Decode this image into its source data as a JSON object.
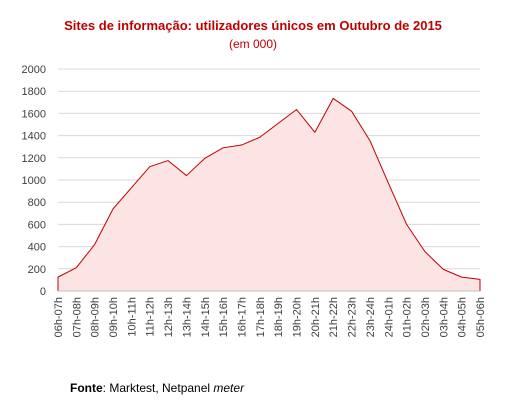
{
  "chart_data": {
    "type": "area",
    "title": "Sites de informação: utilizadores únicos em Outubro de 2015",
    "subtitle": "(em 000)",
    "xlabel": "",
    "ylabel": "",
    "ylim": [
      0,
      2000
    ],
    "yticks": [
      0,
      200,
      400,
      600,
      800,
      1000,
      1200,
      1400,
      1600,
      1800,
      2000
    ],
    "grid": true,
    "legend": "none",
    "categories": [
      "06h-07h",
      "07h-08h",
      "08h-09h",
      "09h-10h",
      "10h-11h",
      "11h-12h",
      "12h-13h",
      "13h-14h",
      "14h-15h",
      "15h-16h",
      "16h-17h",
      "17h-18h",
      "18h-19h",
      "19h-20h",
      "20h-21h",
      "21h-22h",
      "22h-23h",
      "23h-24h",
      "24h-01h",
      "01h-02h",
      "02h-03h",
      "03h-04h",
      "04h-05h",
      "05h-06h"
    ],
    "values": [
      125,
      210,
      420,
      740,
      930,
      1120,
      1175,
      1040,
      1195,
      1290,
      1315,
      1385,
      1510,
      1635,
      1430,
      1735,
      1620,
      1355,
      975,
      600,
      355,
      195,
      125,
      105
    ],
    "colors": {
      "line": "#c00000",
      "fill": "#fde4e4",
      "grid": "#d9d9d9",
      "axis_text": "#404040",
      "title": "#c00000"
    }
  },
  "source": {
    "label": "Fonte",
    "separator": ": ",
    "text": "Marktest, Netpanel ",
    "italic": "meter"
  }
}
